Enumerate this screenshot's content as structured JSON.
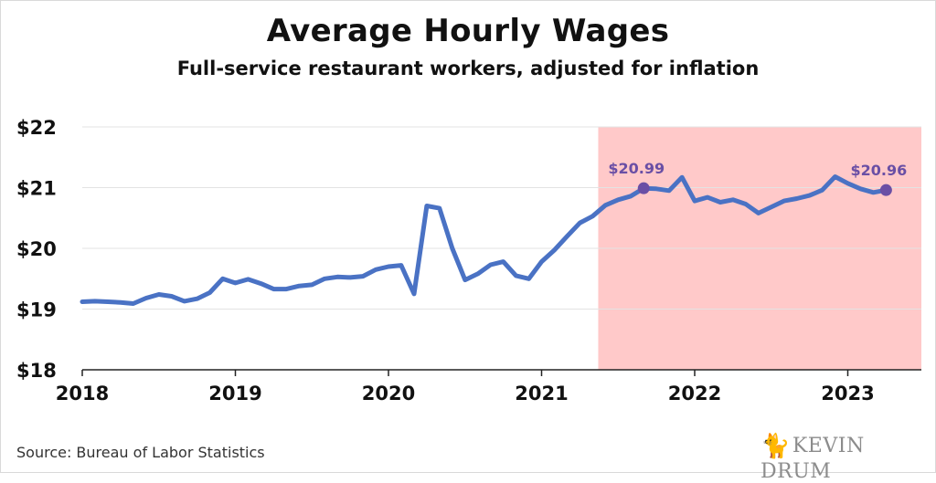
{
  "chart_data": {
    "type": "line",
    "title": "Average Hourly Wages",
    "subtitle": "Full-service restaurant workers, adjusted for inflation",
    "ylim": [
      18,
      22
    ],
    "yticks": [
      {
        "value": 18,
        "label": "$18"
      },
      {
        "value": 19,
        "label": "$19"
      },
      {
        "value": 20,
        "label": "$20"
      },
      {
        "value": 21,
        "label": "$21"
      },
      {
        "value": 22,
        "label": "$22"
      }
    ],
    "xlim": [
      2018.0,
      2023.5
    ],
    "xticks": [
      {
        "value": 2018,
        "label": "2018"
      },
      {
        "value": 2019,
        "label": "2019"
      },
      {
        "value": 2020,
        "label": "2020"
      },
      {
        "value": 2021,
        "label": "2021"
      },
      {
        "value": 2022,
        "label": "2022"
      },
      {
        "value": 2023,
        "label": "2023"
      }
    ],
    "grid": true,
    "highlight_range": [
      2021.37,
      2023.5
    ],
    "colors": {
      "line": "#4a72c4",
      "highlight": "#ffc9c9",
      "point": "#6a4fa5",
      "grid": "#e3e3e3"
    },
    "series": [
      {
        "x": [
          2018.0,
          2018.083,
          2018.167,
          2018.25,
          2018.333,
          2018.417,
          2018.5,
          2018.583,
          2018.667,
          2018.75,
          2018.833,
          2018.917,
          2019.0,
          2019.083,
          2019.167,
          2019.25,
          2019.333,
          2019.417,
          2019.5,
          2019.583,
          2019.667,
          2019.75,
          2019.833,
          2019.917,
          2020.0,
          2020.083,
          2020.167,
          2020.25,
          2020.333,
          2020.417,
          2020.5,
          2020.583,
          2020.667,
          2020.75,
          2020.833,
          2020.917,
          2021.0,
          2021.083,
          2021.167,
          2021.25,
          2021.333,
          2021.417,
          2021.5,
          2021.583,
          2021.667,
          2021.75,
          2021.833,
          2021.917,
          2022.0,
          2022.083,
          2022.167,
          2022.25,
          2022.333,
          2022.417,
          2022.5,
          2022.583,
          2022.667,
          2022.75,
          2022.833,
          2022.917,
          2023.0,
          2023.083,
          2023.167,
          2023.25
        ],
        "values": [
          19.12,
          19.13,
          19.12,
          19.11,
          19.09,
          19.18,
          19.24,
          19.21,
          19.13,
          19.17,
          19.27,
          19.5,
          19.43,
          19.49,
          19.42,
          19.33,
          19.33,
          19.38,
          19.4,
          19.5,
          19.53,
          19.52,
          19.54,
          19.65,
          19.7,
          19.72,
          19.25,
          20.7,
          20.66,
          20.0,
          19.48,
          19.58,
          19.73,
          19.78,
          19.55,
          19.5,
          19.78,
          19.97,
          20.2,
          20.42,
          20.53,
          20.71,
          20.8,
          20.86,
          20.99,
          20.98,
          20.95,
          21.17,
          20.78,
          20.84,
          20.76,
          20.8,
          20.73,
          20.58,
          20.68,
          20.78,
          20.82,
          20.87,
          20.96,
          21.18,
          21.07,
          20.98,
          20.92,
          20.96
        ]
      }
    ],
    "annotations": [
      {
        "x": 2021.667,
        "y": 20.99,
        "text": "$20.99"
      },
      {
        "x": 2023.25,
        "y": 20.96,
        "text": "$20.96"
      }
    ]
  },
  "footer": {
    "source": "Source: Bureau of Labor Statistics",
    "logo_text": "KEVIN DRUM"
  }
}
